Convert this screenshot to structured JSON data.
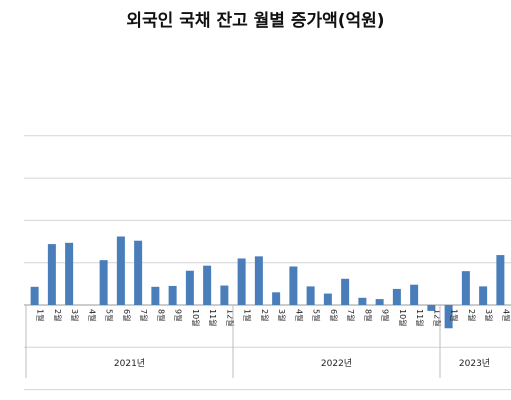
{
  "chart_data": {
    "type": "bar",
    "title": "외국인 국채 잔고 월별 증가액(억원)",
    "xlabel": "",
    "ylabel": "",
    "ylim": [
      -20000,
      40000
    ],
    "y_ticks": [],
    "grid": true,
    "bar_color": "#4a7ebb",
    "month_suffix": "월",
    "groups": [
      {
        "label": "2021년",
        "categories": [
          "1",
          "2",
          "3",
          "4",
          "5",
          "6",
          "7",
          "8",
          "9",
          "10",
          "11",
          "12"
        ],
        "values": [
          4300,
          14400,
          14700,
          0,
          10600,
          16200,
          15200,
          4300,
          4500,
          8100,
          9300,
          4600
        ]
      },
      {
        "label": "2022년",
        "categories": [
          "1",
          "2",
          "3",
          "4",
          "5",
          "6",
          "7",
          "8",
          "9",
          "10",
          "11",
          "12"
        ],
        "values": [
          11000,
          11500,
          3000,
          9100,
          4400,
          2700,
          6200,
          1700,
          1400,
          3800,
          4800,
          -1400
        ]
      },
      {
        "label": "2023년",
        "categories": [
          "1",
          "2",
          "3",
          "4"
        ],
        "values": [
          -5500,
          8000,
          4400,
          11800
        ]
      }
    ]
  }
}
